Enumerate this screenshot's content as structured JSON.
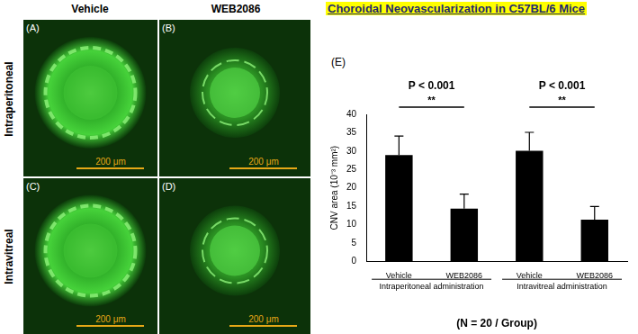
{
  "title": "Choroidal Neovascularization in C57BL/6 Mice",
  "image_panels": {
    "columns": [
      "Vehicle",
      "WEB2086"
    ],
    "rows": [
      "Intraperitoneal",
      "Intravitreal"
    ],
    "panel_labels": [
      "(A)",
      "(B)",
      "(C)",
      "(D)"
    ],
    "scale_bar": "200 μm"
  },
  "chart_data": {
    "type": "bar",
    "panel_label": "(E)",
    "y_label": "CNV area (10⁻³ mm²)",
    "categories": [
      "Vehicle",
      "WEB2086",
      "Vehicle",
      "WEB2086"
    ],
    "values": [
      28.9,
      14.3,
      30.1,
      11.3
    ],
    "errors": [
      5.2,
      4.0,
      5.0,
      3.6
    ],
    "color": "#000000",
    "ylim": [
      0,
      40
    ],
    "yticks": [
      0,
      5,
      10,
      15,
      20,
      25,
      30,
      35,
      40
    ],
    "grid": false,
    "groups": [
      "Intraperitoneal administration",
      "Intravitreal administration"
    ],
    "comparisons": [
      {
        "p_label": "P < 0.001",
        "stars": "**"
      },
      {
        "p_label": "P < 0.001",
        "stars": "**"
      }
    ],
    "footnote": "(N = 20 / Group)"
  }
}
